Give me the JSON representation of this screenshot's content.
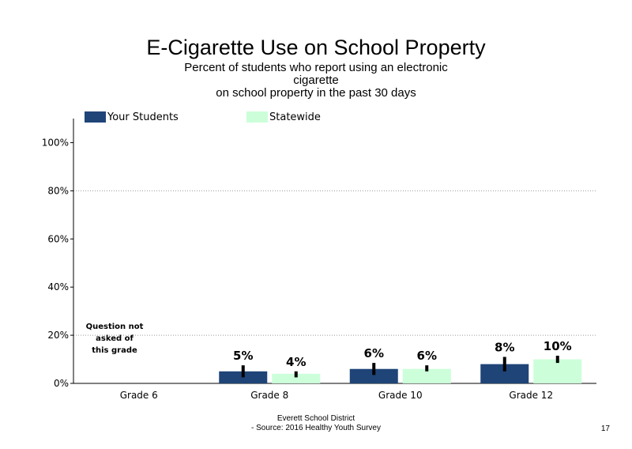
{
  "title": "E-Cigarette Use on School Property",
  "subtitle_lines": [
    "Percent of students  who report using an electronic",
    "cigarette",
    "on school property in the past 30 days"
  ],
  "footer_lines": [
    "Everett School District",
    "- Source: 2016 Healthy  Youth Survey"
  ],
  "page_number": "17",
  "colors": {
    "your_students": "#1f4478",
    "statewide": "#ccffd9",
    "error_bar": "#000000",
    "grid": "#999999"
  },
  "chart_data": {
    "type": "bar",
    "title": "E-Cigarette Use on School Property",
    "xlabel": "",
    "ylabel": "",
    "ylim": [
      0,
      110
    ],
    "yticks": [
      0,
      20,
      40,
      60,
      80,
      100
    ],
    "ytick_labels": [
      "0%",
      "20%",
      "40%",
      "60%",
      "80%",
      "100%"
    ],
    "grid": "dotted horizontal at 20% and 80%",
    "legend_position": "top-left",
    "categories": [
      "Grade 6",
      "Grade 8",
      "Grade 10",
      "Grade 12"
    ],
    "series": [
      {
        "name": "Your Students",
        "values": [
          null,
          5,
          6,
          8
        ],
        "labels": [
          "",
          "5%",
          "6%",
          "8%"
        ],
        "error_low": [
          null,
          2.5,
          3.5,
          5
        ],
        "error_high": [
          null,
          7.5,
          8.5,
          11
        ]
      },
      {
        "name": "Statewide",
        "values": [
          null,
          4,
          6,
          10
        ],
        "labels": [
          "",
          "4%",
          "6%",
          "10%"
        ],
        "error_low": [
          null,
          2.5,
          5,
          8.5
        ],
        "error_high": [
          null,
          5,
          7.5,
          11.5
        ]
      }
    ],
    "annotation_lines": [
      "Question not",
      "asked of",
      "this grade"
    ]
  }
}
